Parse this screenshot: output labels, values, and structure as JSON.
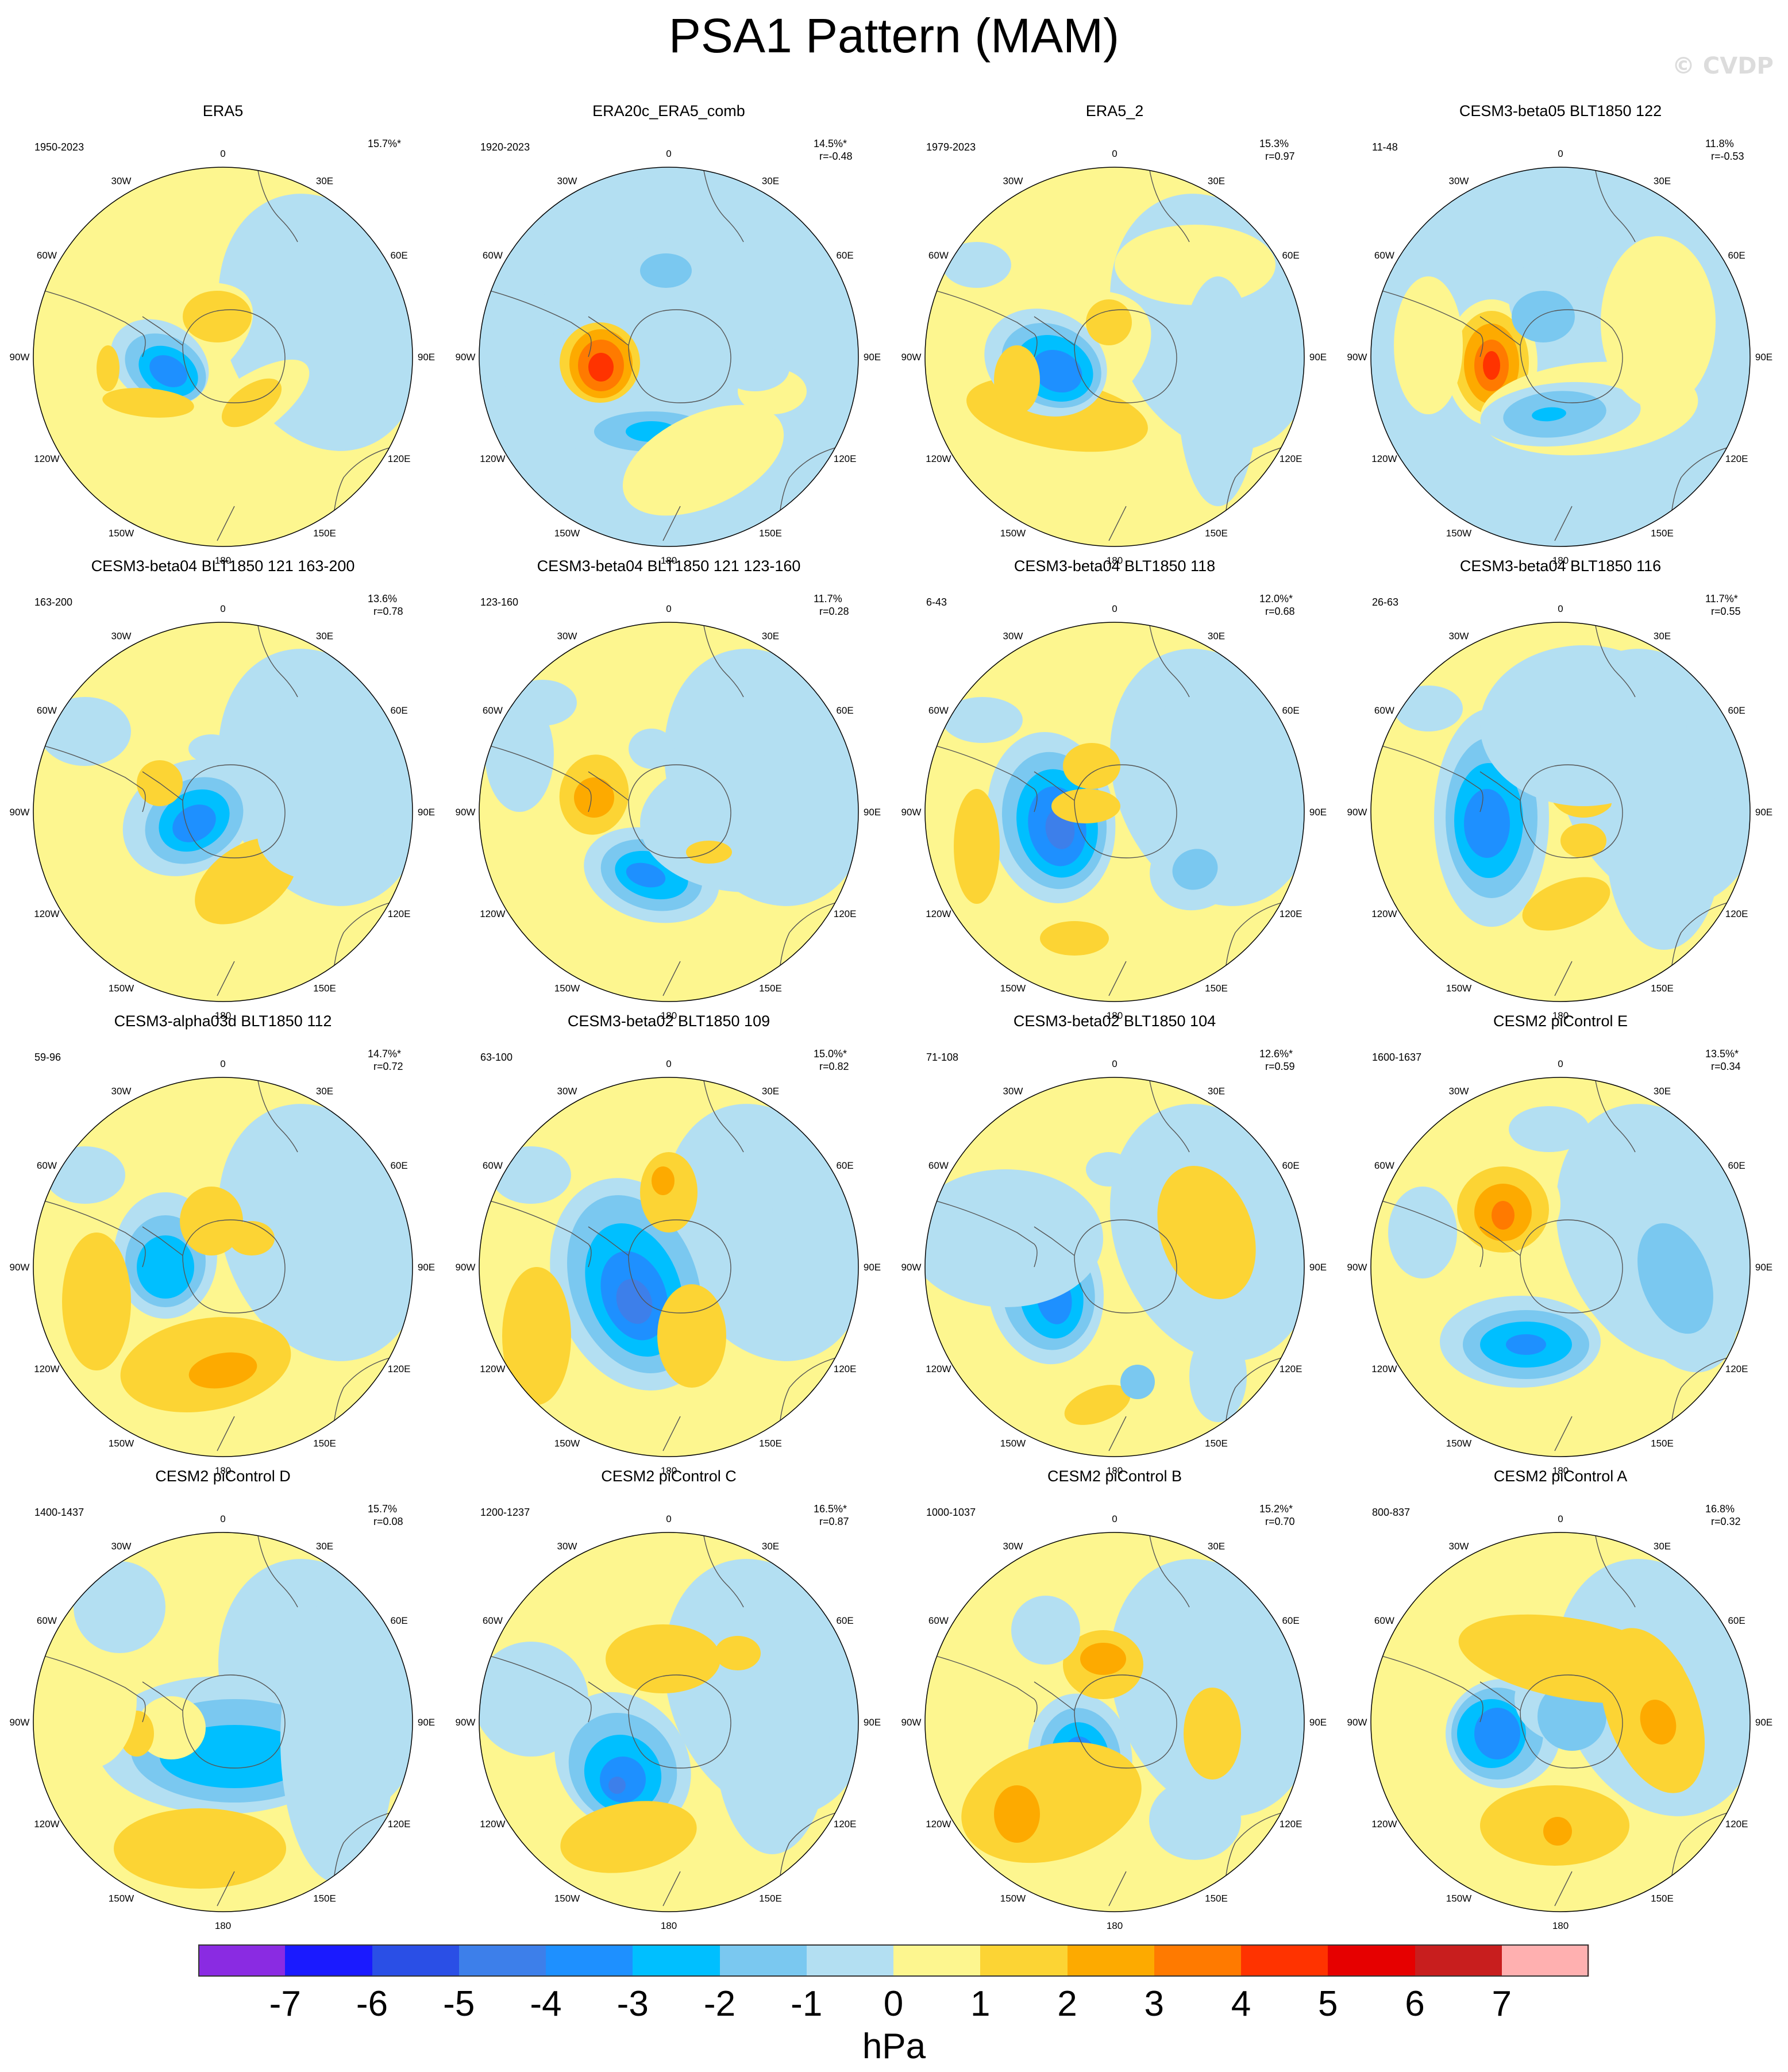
{
  "title": "PSA1 Pattern (MAM)",
  "watermark": "© CVDP",
  "units": "hPa",
  "colorbar": {
    "colors": [
      "#8a2be2",
      "#1a1aff",
      "#2a4fe6",
      "#3d7fea",
      "#1e90ff",
      "#00bfff",
      "#7ac8f0",
      "#b3dff2",
      "#fdf68f",
      "#fcd434",
      "#fdaa00",
      "#ff7a00",
      "#ff3300",
      "#e60000",
      "#c81e1e",
      "#ffb0b0"
    ],
    "labels": [
      "-7",
      "-6",
      "-5",
      "-4",
      "-3",
      "-2",
      "-1",
      "0",
      "1",
      "2",
      "3",
      "4",
      "5",
      "6",
      "7"
    ]
  },
  "longitude_labels": [
    "0",
    "30E",
    "60E",
    "90E",
    "120E",
    "150E",
    "180",
    "150W",
    "120W",
    "90W",
    "60W",
    "30W"
  ],
  "panels": [
    {
      "title": "ERA5",
      "period": "1950-2023",
      "pct": "15.7%*",
      "r": ""
    },
    {
      "title": "ERA20c_ERA5_comb",
      "period": "1920-2023",
      "pct": "14.5%*",
      "r": "r=-0.48"
    },
    {
      "title": "ERA5_2",
      "period": "1979-2023",
      "pct": "15.3%",
      "r": "r=0.97"
    },
    {
      "title": "CESM3-beta05 BLT1850 122",
      "period": "11-48",
      "pct": "11.8%",
      "r": "r=-0.53"
    },
    {
      "title": "CESM3-beta04 BLT1850 121 163-200",
      "period": "163-200",
      "pct": "13.6%",
      "r": "r=0.78"
    },
    {
      "title": "CESM3-beta04 BLT1850 121 123-160",
      "period": "123-160",
      "pct": "11.7%",
      "r": "r=0.28"
    },
    {
      "title": "CESM3-beta04 BLT1850 118",
      "period": "6-43",
      "pct": "12.0%*",
      "r": "r=0.68"
    },
    {
      "title": "CESM3-beta04 BLT1850 116",
      "period": "26-63",
      "pct": "11.7%*",
      "r": "r=0.55"
    },
    {
      "title": "CESM3-alpha03d BLT1850 112",
      "period": "59-96",
      "pct": "14.7%*",
      "r": "r=0.72"
    },
    {
      "title": "CESM3-beta02 BLT1850 109",
      "period": "63-100",
      "pct": "15.0%*",
      "r": "r=0.82"
    },
    {
      "title": "CESM3-beta02 BLT1850 104",
      "period": "71-108",
      "pct": "12.6%*",
      "r": "r=0.59"
    },
    {
      "title": "CESM2 piControl E",
      "period": "1600-1637",
      "pct": "13.5%*",
      "r": "r=0.34"
    },
    {
      "title": "CESM2 piControl D",
      "period": "1400-1437",
      "pct": "15.7%",
      "r": "r=0.08"
    },
    {
      "title": "CESM2 piControl C",
      "period": "1200-1237",
      "pct": "16.5%*",
      "r": "r=0.87"
    },
    {
      "title": "CESM2 piControl B",
      "period": "1000-1037",
      "pct": "15.2%*",
      "r": "r=0.70"
    },
    {
      "title": "CESM2 piControl A",
      "period": "800-837",
      "pct": "16.8%",
      "r": "r=0.32"
    }
  ]
}
